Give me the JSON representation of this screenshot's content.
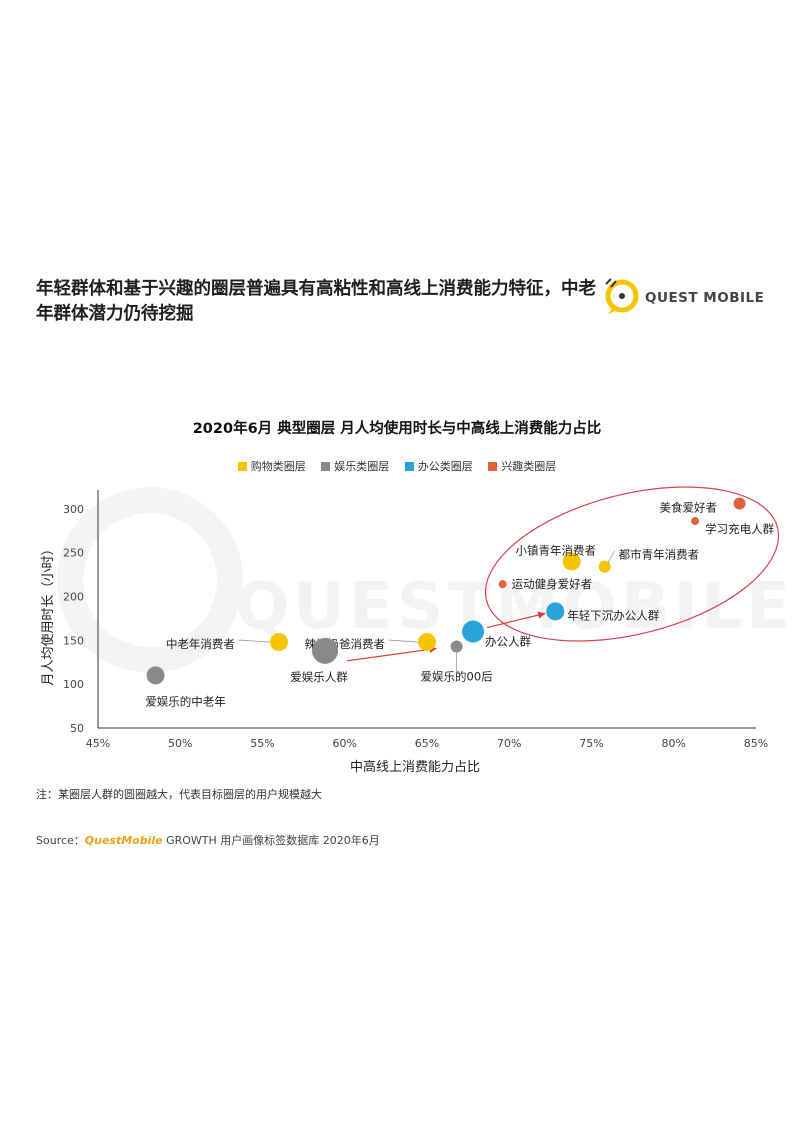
{
  "headline": "年轻群体和基于兴趣的圈层普遍具有高粘性和高线上消费能力特征，中老年群体潜力仍待挖掘",
  "logo": {
    "text": "QUEST MOBILE",
    "icon": "questmobile-logo-icon"
  },
  "note": "注：某圈层人群的圆圈越大，代表目标圈层的用户规模越大",
  "source": {
    "prefix": "Source：",
    "brand": "QuestMobile",
    "rest": " GROWTH 用户画像标签数据库 2020年6月"
  },
  "colors": {
    "shopping": "#f5c500",
    "entertainment": "#8a8a8a",
    "office": "#29a3d9",
    "interest": "#e2623a",
    "ellipse": "#d9434a",
    "arrow": "#d93a3a"
  },
  "chart_data": {
    "type": "scatter",
    "title": "2020年6月 典型圈层 月人均使用时长与中高线上消费能力占比",
    "xlabel": "中高线上消费能力占比",
    "ylabel": "月人均使用时长（小时）",
    "xlim": [
      45,
      85
    ],
    "ylim": [
      50,
      310
    ],
    "xticks": [
      "45%",
      "50%",
      "55%",
      "60%",
      "65%",
      "70%",
      "75%",
      "80%",
      "85%"
    ],
    "yticks": [
      "50",
      "100",
      "150",
      "200",
      "250",
      "300"
    ],
    "legend_position": "top",
    "series": [
      {
        "name": "购物类圈层",
        "key": "shopping",
        "points": [
          {
            "label": "中老年消费者",
            "x": 56.0,
            "y": 148,
            "size": 3
          },
          {
            "label": "辣妈奶爸消费者",
            "x": 65.0,
            "y": 148,
            "size": 3
          },
          {
            "label": "小镇青年消费者",
            "x": 73.8,
            "y": 240,
            "size": 3
          },
          {
            "label": "都市青年消费者",
            "x": 75.8,
            "y": 234,
            "size": 2
          }
        ]
      },
      {
        "name": "娱乐类圈层",
        "key": "entertainment",
        "points": [
          {
            "label": "爱娱乐的中老年",
            "x": 48.5,
            "y": 110,
            "size": 3
          },
          {
            "label": "爱娱乐人群",
            "x": 58.8,
            "y": 138,
            "size": 5
          },
          {
            "label": "爱娱乐的00后",
            "x": 66.8,
            "y": 143,
            "size": 2
          }
        ]
      },
      {
        "name": "办公类圈层",
        "key": "office",
        "points": [
          {
            "label": "办公人群",
            "x": 67.8,
            "y": 160,
            "size": 4
          },
          {
            "label": "年轻下沉办公人群",
            "x": 72.8,
            "y": 183,
            "size": 3
          }
        ]
      },
      {
        "name": "兴趣类圈层",
        "key": "interest",
        "points": [
          {
            "label": "美食爱好者",
            "x": 84.0,
            "y": 306,
            "size": 2
          },
          {
            "label": "学习充电人群",
            "x": 81.3,
            "y": 286,
            "size": 1
          },
          {
            "label": "运动健身爱好者",
            "x": 69.6,
            "y": 214,
            "size": 1
          }
        ]
      }
    ]
  }
}
